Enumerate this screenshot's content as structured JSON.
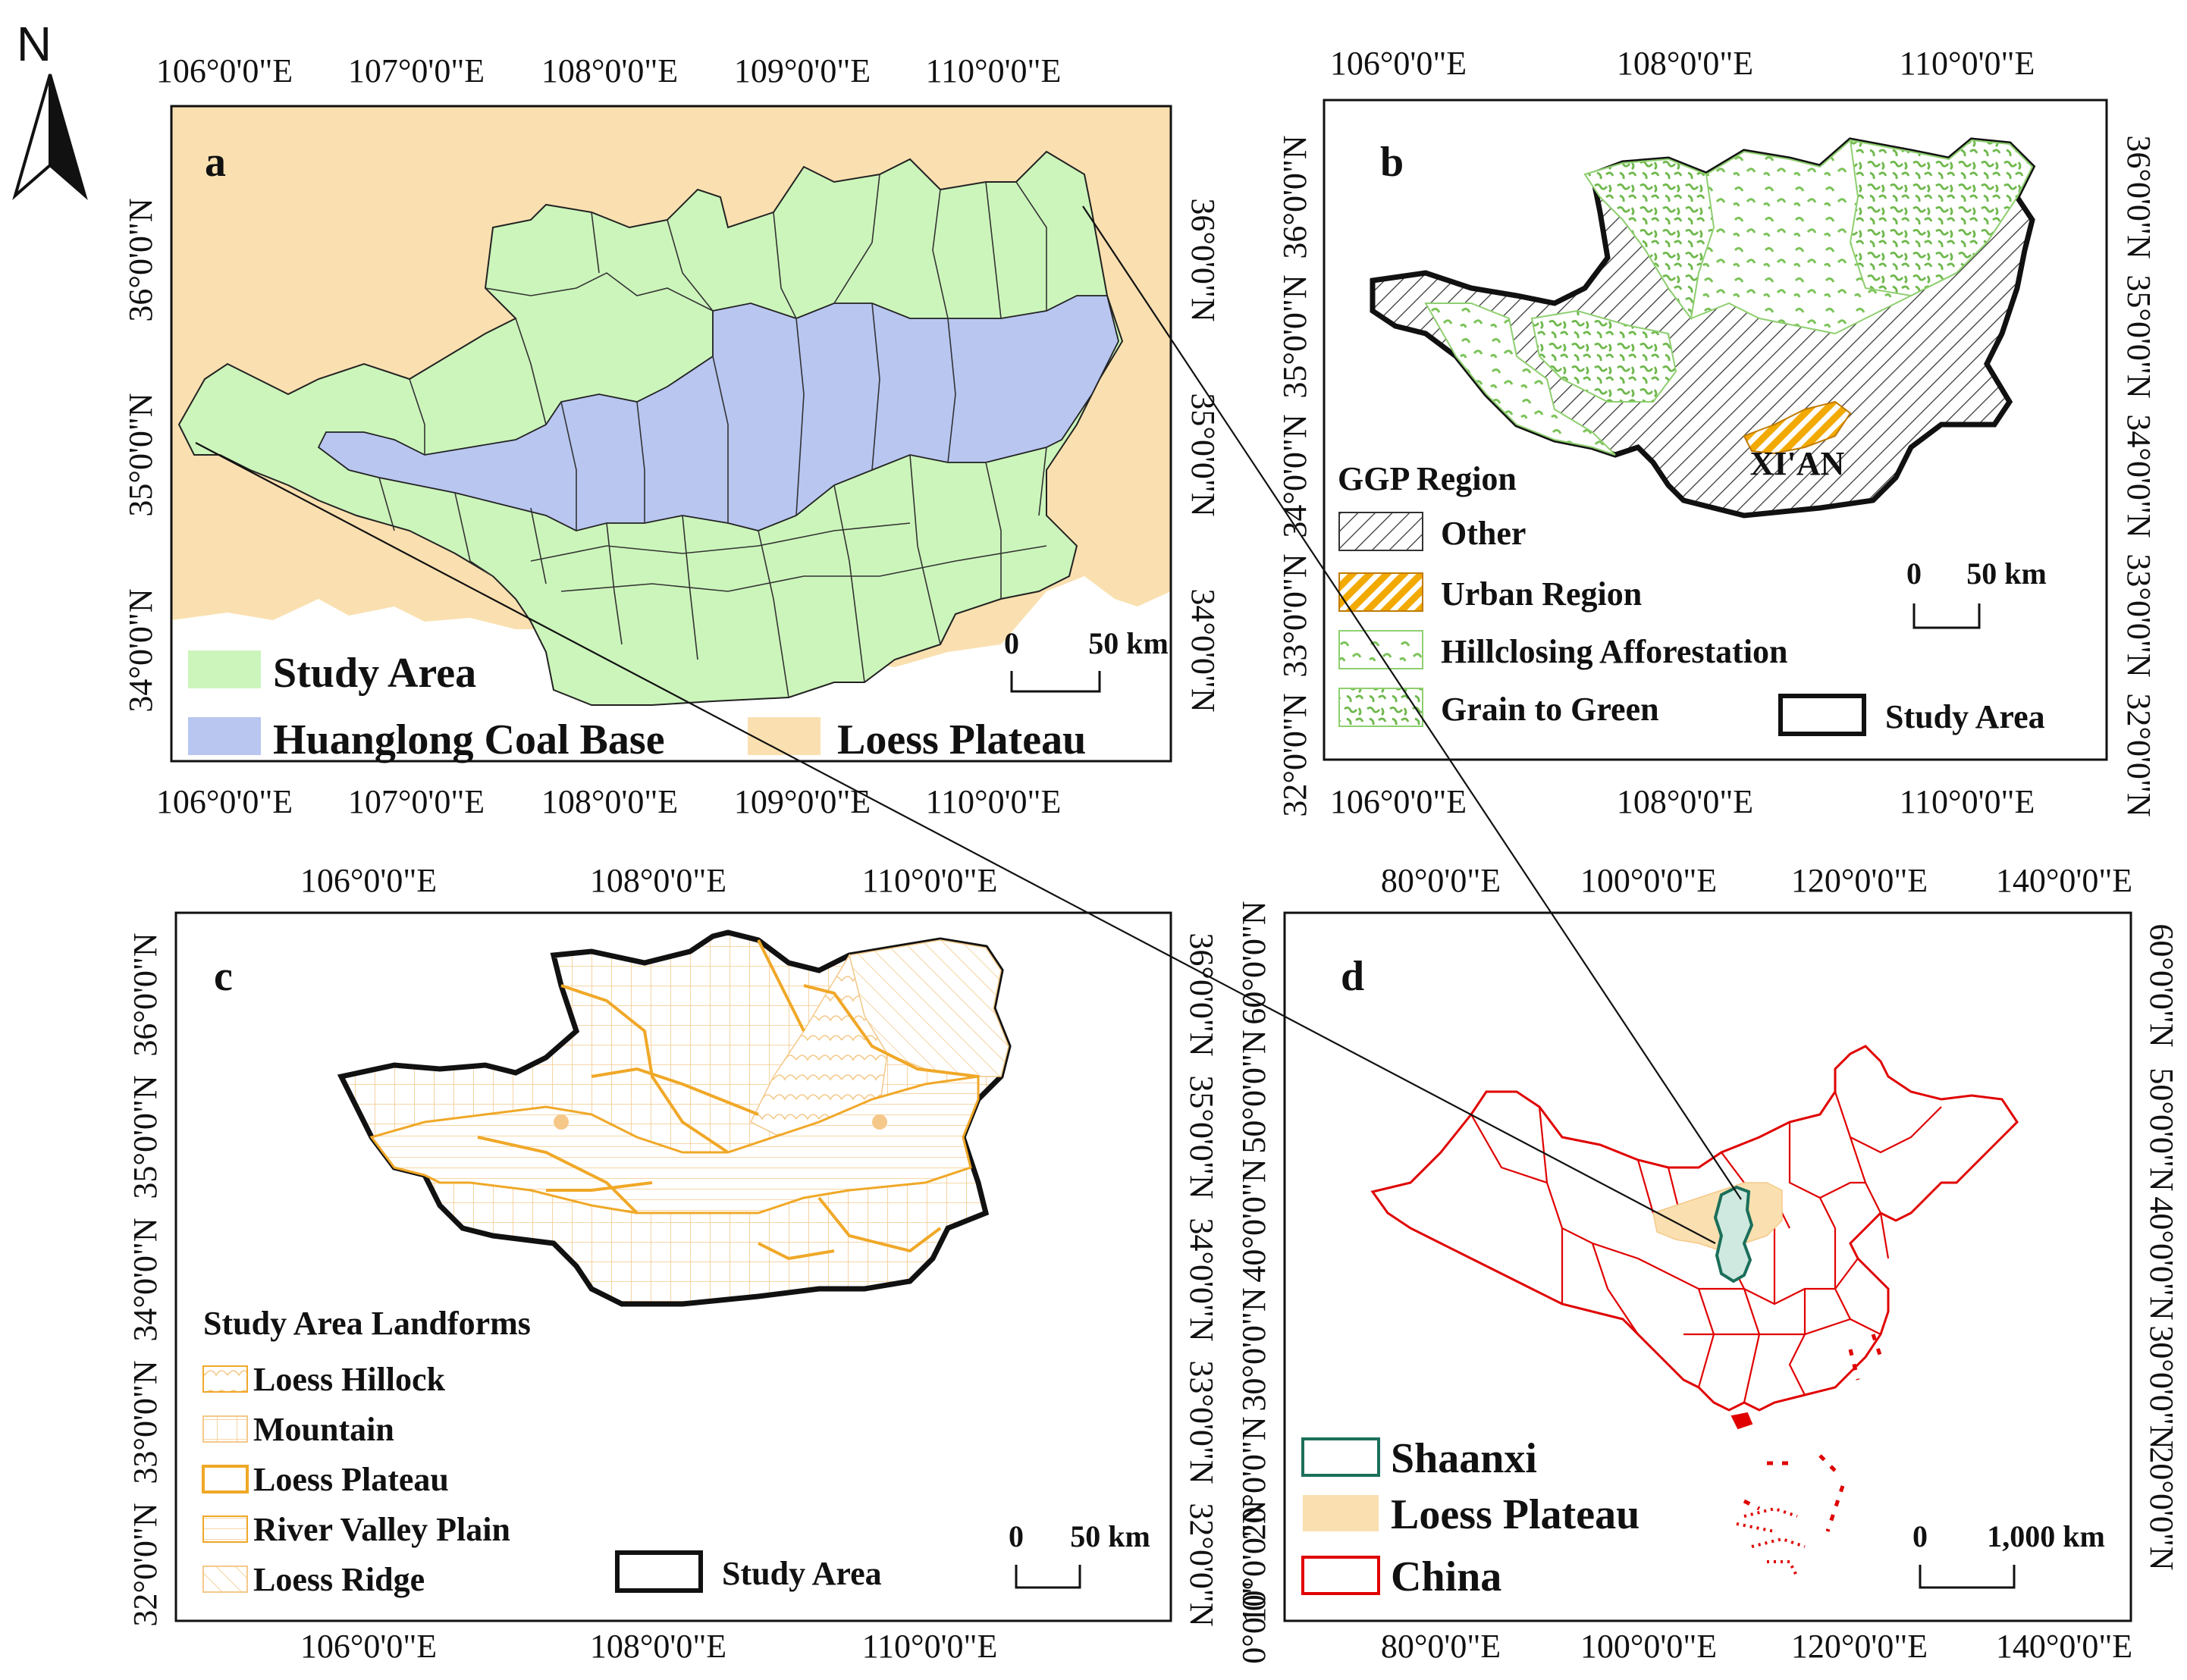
{
  "north_label": "N",
  "colors": {
    "study_area": "#ccf5bb",
    "coal_base": "#b8c6f0",
    "loess_plateau": "#fae0b0",
    "urban": "#f2a900",
    "afforestation": "#7cc35a",
    "china_border": "#e00000",
    "shaanxi": "#1b6f5a",
    "landform_line": "#f0a828"
  },
  "panel_a": {
    "label": "a",
    "top_ticks": [
      "106°0'0\"E",
      "107°0'0\"E",
      "108°0'0\"E",
      "109°0'0\"E",
      "110°0'0\"E"
    ],
    "bottom_ticks": [
      "106°0'0\"E",
      "107°0'0\"E",
      "108°0'0\"E",
      "109°0'0\"E",
      "110°0'0\"E"
    ],
    "left_ticks": [
      "36°0'0\"N",
      "35°0'0\"N",
      "34°0'0\"N"
    ],
    "right_ticks": [
      "36°0'0\"N",
      "35°0'0\"N",
      "34°0'0\"N"
    ],
    "legend": [
      "Study Area",
      "Huanglong Coal  Base",
      "Loess Plateau"
    ],
    "scale": [
      "0",
      "50 km"
    ]
  },
  "panel_b": {
    "label": "b",
    "top_ticks": [
      "106°0'0\"E",
      "108°0'0\"E",
      "110°0'0\"E"
    ],
    "bottom_ticks": [
      "106°0'0\"E",
      "108°0'0\"E",
      "110°0'0\"E"
    ],
    "left_ticks": [
      "36°0'0\"N",
      "35°0'0\"N",
      "34°0'0\"N",
      "33°0'0\"N",
      "32°0'0\"N"
    ],
    "right_ticks": [
      "36°0'0\"N",
      "35°0'0\"N",
      "34°0'0\"N",
      "33°0'0\"N",
      "32°0'0\"N"
    ],
    "city": "XI'AN",
    "legend_title": "GGP Region",
    "legend": [
      "Other",
      "Urban Region",
      "Hillclosing Afforestation",
      "Grain to Green"
    ],
    "study_area": "Study Area",
    "scale": [
      "0",
      "50 km"
    ]
  },
  "panel_c": {
    "label": "c",
    "top_ticks": [
      "106°0'0\"E",
      "108°0'0\"E",
      "110°0'0\"E"
    ],
    "bottom_ticks": [
      "106°0'0\"E",
      "108°0'0\"E",
      "110°0'0\"E"
    ],
    "left_ticks": [
      "36°0'0\"N",
      "35°0'0\"N",
      "34°0'0\"N",
      "33°0'0\"N",
      "32°0'0\"N"
    ],
    "right_ticks": [
      "36°0'0\"N",
      "35°0'0\"N",
      "34°0'0\"N",
      "33°0'0\"N",
      "32°0'0\"N"
    ],
    "legend_title": "Study Area Landforms",
    "legend": [
      "Loess Hillock",
      "Mountain",
      "Loess Plateau",
      "River Valley Plain",
      "Loess Ridge"
    ],
    "study_area": "Study Area",
    "scale": [
      "0",
      "50 km"
    ]
  },
  "panel_d": {
    "label": "d",
    "top_ticks": [
      "80°0'0\"E",
      "100°0'0\"E",
      "120°0'0\"E",
      "140°0'0\"E"
    ],
    "bottom_ticks": [
      "80°0'0\"E",
      "100°0'0\"E",
      "120°0'0\"E",
      "140°0'0\"E"
    ],
    "left_ticks": [
      "60°0'0\"N",
      "50°0'0\"N",
      "40°0'0\"N",
      "30°0'0\"N",
      "20°0'0\"N",
      "10°0'0\"N",
      "0°0'0\""
    ],
    "right_ticks": [
      "60°0'0\"N",
      "50°0'0\"N",
      "40°0'0\"N",
      "30°0'0\"N",
      "20°0'0\"N"
    ],
    "legend": [
      "Shaanxi",
      "Loess Plateau",
      "China"
    ],
    "scale": [
      "0",
      "1,000 km"
    ]
  }
}
